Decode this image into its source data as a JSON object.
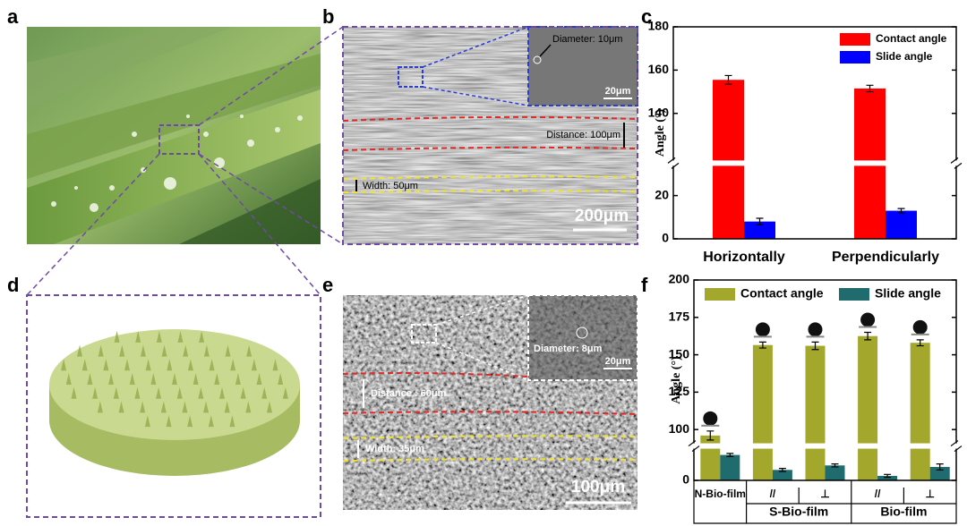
{
  "panel_labels": [
    "a",
    "b",
    "c",
    "d",
    "e",
    "f"
  ],
  "panel_b": {
    "inset_diameter": "Diameter: 10μm",
    "inset_scale": "20μm",
    "distance": "Distance: 100μm",
    "width": "Width: 50μm",
    "scale": "200μm"
  },
  "panel_e": {
    "inset_diameter": "Diameter: 8μm",
    "inset_scale": "20μm",
    "distance": "Distance : 60μm",
    "width": "Width: 35μm",
    "scale": "100μm"
  },
  "chart_data": [
    {
      "type": "bar",
      "categories": [
        "Horizontally",
        "Perpendicularly"
      ],
      "ylabel": "Angle (°)",
      "ylim": [
        0,
        180
      ],
      "ybreak": [
        35,
        117
      ],
      "yticks": [
        0,
        20,
        140,
        160,
        180
      ],
      "legend": "upper right",
      "series": [
        {
          "name": "Contact angle",
          "color": "#ff0000",
          "values": [
            155.5,
            151.5
          ],
          "errors": [
            2,
            1.5
          ]
        },
        {
          "name": "Slide angle",
          "color": "#0000ff",
          "values": [
            8,
            13
          ],
          "errors": [
            1.5,
            1
          ]
        }
      ]
    },
    {
      "type": "bar",
      "categories": [
        "N-Bio-film",
        "//",
        "⊥",
        "//",
        "⊥"
      ],
      "groups": [
        "S-Bio-film",
        "Bio-film"
      ],
      "ylabel": "Angle (°)",
      "ylim": [
        0,
        200
      ],
      "ybreak": [
        23,
        89
      ],
      "yticks": [
        0,
        100,
        125,
        150,
        175,
        200
      ],
      "legend": "top",
      "series": [
        {
          "name": "Contact angle",
          "color": "#a3a82c",
          "values": [
            96,
            156.5,
            156,
            162.5,
            158
          ],
          "errors": [
            3,
            2,
            2.5,
            2.5,
            2
          ]
        },
        {
          "name": "Slide angle",
          "color": "#1f6b6e",
          "values": [
            17,
            7,
            10,
            3,
            9
          ],
          "errors": [
            1,
            1,
            1,
            1,
            2
          ]
        }
      ]
    }
  ]
}
